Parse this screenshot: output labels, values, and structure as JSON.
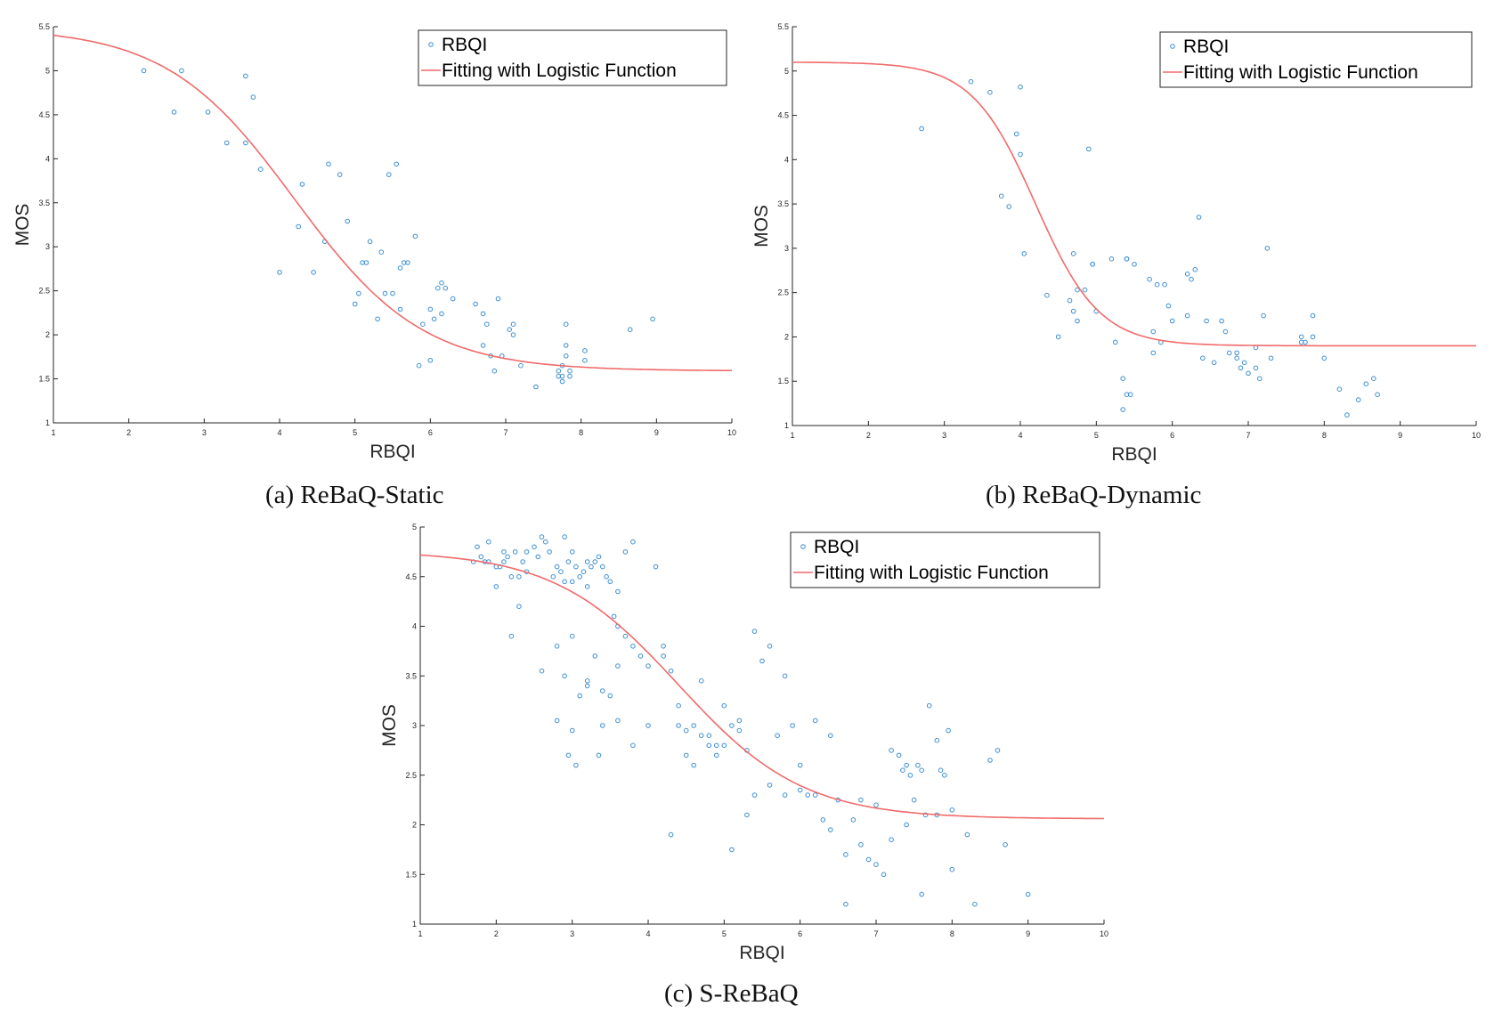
{
  "chart_data": [
    {
      "id": "static",
      "type": "scatter",
      "caption": "(a) ReBaQ-Static",
      "xlabel": "RBQI",
      "ylabel": "MOS",
      "xlim": [
        1,
        10
      ],
      "ylim": [
        1,
        5.5
      ],
      "xticks": [
        "1",
        "2",
        "3",
        "4",
        "5",
        "6",
        "7",
        "8",
        "9",
        "10"
      ],
      "yticks": [
        "1",
        "1.5",
        "2",
        "2.5",
        "3",
        "3.5",
        "4",
        "4.5",
        "5",
        "5.5"
      ],
      "legend": {
        "position": "top-right",
        "entries": [
          "RBQI",
          "Fitting with Logistic Function"
        ]
      },
      "colors": {
        "points": "#3d8fd1",
        "curve": "#f06a6a"
      },
      "fit": {
        "beta1": 1.59,
        "beta2": 3.9,
        "beta3": 4.2,
        "beta4": 0.85
      },
      "series": [
        {
          "name": "RBQI",
          "x": [
            2.2,
            2.6,
            2.7,
            3.05,
            3.3,
            3.55,
            3.55,
            3.65,
            3.75,
            4.0,
            4.25,
            4.3,
            4.45,
            4.6,
            4.65,
            4.8,
            4.9,
            5.0,
            5.05,
            5.1,
            5.15,
            5.2,
            5.3,
            5.35,
            5.4,
            5.45,
            5.5,
            5.55,
            5.6,
            5.6,
            5.65,
            5.7,
            5.8,
            5.85,
            5.9,
            6.0,
            6.0,
            6.05,
            6.1,
            6.15,
            6.15,
            6.2,
            6.3,
            6.6,
            6.7,
            6.7,
            6.75,
            6.8,
            6.85,
            6.9,
            6.95,
            7.05,
            7.1,
            7.1,
            7.2,
            7.4,
            7.7,
            7.7,
            7.75,
            7.75,
            7.75,
            7.8,
            7.8,
            7.8,
            7.85,
            7.85,
            8.05,
            8.05,
            8.65,
            8.95
          ],
          "y": [
            5.0,
            4.53,
            5.0,
            4.53,
            4.18,
            4.94,
            4.18,
            4.7,
            3.88,
            2.71,
            3.23,
            3.71,
            2.71,
            3.06,
            3.94,
            3.82,
            3.29,
            2.35,
            2.47,
            2.82,
            2.82,
            3.06,
            2.18,
            2.94,
            2.47,
            3.82,
            2.47,
            3.94,
            2.76,
            2.29,
            2.82,
            2.82,
            3.12,
            1.65,
            2.12,
            2.29,
            1.71,
            2.18,
            2.53,
            2.59,
            2.24,
            2.53,
            2.41,
            2.35,
            2.24,
            1.88,
            2.12,
            1.76,
            1.59,
            2.41,
            1.76,
            2.06,
            2.12,
            2.0,
            1.65,
            1.41,
            1.53,
            1.59,
            1.65,
            1.53,
            1.47,
            2.12,
            1.88,
            1.76,
            1.59,
            1.53,
            1.82,
            1.71,
            2.06,
            2.18
          ]
        }
      ]
    },
    {
      "id": "dynamic",
      "type": "scatter",
      "caption": "(b) ReBaQ-Dynamic",
      "xlabel": "RBQI",
      "ylabel": "MOS",
      "xlim": [
        1,
        10
      ],
      "ylim": [
        1,
        5.5
      ],
      "xticks": [
        "1",
        "2",
        "3",
        "4",
        "5",
        "6",
        "7",
        "8",
        "9",
        "10"
      ],
      "yticks": [
        "1",
        "1.5",
        "2",
        "2.5",
        "3",
        "3.5",
        "4",
        "4.5",
        "5",
        "5.5"
      ],
      "legend": {
        "position": "top-right",
        "entries": [
          "RBQI",
          "Fitting with Logistic Function"
        ]
      },
      "colors": {
        "points": "#3d8fd1",
        "curve": "#f06a6a"
      },
      "fit": {
        "beta1": 1.9,
        "beta2": 3.2,
        "beta3": 4.2,
        "beta4": 0.42
      },
      "series": [
        {
          "name": "RBQI",
          "x": [
            2.7,
            3.35,
            3.6,
            3.75,
            3.85,
            3.95,
            4.0,
            4.0,
            4.05,
            4.35,
            4.5,
            4.65,
            4.7,
            4.7,
            4.75,
            4.75,
            4.85,
            4.9,
            4.95,
            4.95,
            5.0,
            5.2,
            5.25,
            5.35,
            5.35,
            5.4,
            5.4,
            5.4,
            5.45,
            5.5,
            5.7,
            5.75,
            5.75,
            5.8,
            5.85,
            5.9,
            5.95,
            6.0,
            6.2,
            6.2,
            6.25,
            6.3,
            6.35,
            6.4,
            6.45,
            6.55,
            6.65,
            6.7,
            6.75,
            6.85,
            6.85,
            6.9,
            6.95,
            7.0,
            7.1,
            7.1,
            7.15,
            7.2,
            7.25,
            7.3,
            7.7,
            7.7,
            7.75,
            7.85,
            7.85,
            8.0,
            8.2,
            8.3,
            8.45,
            8.55,
            8.65,
            8.7
          ],
          "y": [
            4.35,
            4.88,
            4.76,
            3.59,
            3.47,
            4.29,
            4.06,
            4.82,
            2.94,
            2.47,
            2.0,
            2.41,
            2.29,
            2.94,
            2.18,
            2.53,
            2.53,
            4.12,
            2.82,
            2.82,
            2.29,
            2.88,
            1.94,
            1.53,
            1.18,
            2.88,
            2.88,
            1.35,
            1.35,
            2.82,
            2.65,
            1.82,
            2.06,
            2.59,
            1.94,
            2.59,
            2.35,
            2.18,
            2.71,
            2.24,
            2.65,
            2.76,
            3.35,
            1.76,
            2.18,
            1.71,
            2.18,
            2.06,
            1.82,
            1.82,
            1.76,
            1.65,
            1.71,
            1.59,
            1.65,
            1.88,
            1.53,
            2.24,
            3.0,
            1.76,
            1.94,
            2.0,
            1.94,
            2.24,
            2.0,
            1.76,
            1.41,
            1.12,
            1.29,
            1.47,
            1.53,
            1.35
          ]
        }
      ]
    },
    {
      "id": "srebaq",
      "type": "scatter",
      "caption": "(c) S-ReBaQ",
      "xlabel": "RBQI",
      "ylabel": "MOS",
      "xlim": [
        1,
        10
      ],
      "ylim": [
        1,
        5
      ],
      "xticks": [
        "1",
        "2",
        "3",
        "4",
        "5",
        "6",
        "7",
        "8",
        "9",
        "10"
      ],
      "yticks": [
        "1",
        "1.5",
        "2",
        "2.5",
        "3",
        "3.5",
        "4",
        "4.5",
        "5"
      ],
      "legend": {
        "position": "top-right",
        "entries": [
          "RBQI",
          "Fitting with Logistic Function"
        ]
      },
      "colors": {
        "points": "#3d8fd1",
        "curve": "#f06a6a"
      },
      "fit": {
        "beta1": 2.06,
        "beta2": 2.7,
        "beta3": 4.4,
        "beta4": 0.82
      },
      "series": [
        {
          "name": "RBQI",
          "x": [
            1.7,
            1.75,
            1.8,
            1.85,
            1.9,
            2.0,
            2.0,
            2.05,
            2.1,
            2.15,
            2.2,
            2.25,
            2.3,
            2.3,
            2.35,
            2.4,
            2.5,
            2.55,
            2.6,
            2.65,
            2.7,
            2.75,
            2.8,
            2.85,
            2.9,
            2.9,
            2.95,
            3.0,
            3.0,
            3.05,
            3.1,
            3.15,
            3.2,
            3.2,
            3.25,
            3.3,
            3.35,
            3.4,
            3.45,
            3.5,
            3.55,
            3.6,
            3.6,
            3.7,
            3.8,
            3.8,
            3.9,
            4.0,
            4.1,
            4.2,
            4.3,
            4.4,
            4.5,
            4.6,
            4.7,
            4.8,
            4.9,
            5.0,
            5.1,
            5.2,
            5.3,
            5.4,
            5.5,
            5.6,
            5.7,
            5.8,
            5.9,
            6.0,
            6.1,
            6.2,
            6.3,
            6.4,
            6.5,
            6.6,
            6.7,
            6.8,
            6.9,
            7.0,
            7.1,
            7.2,
            7.3,
            7.35,
            7.4,
            7.45,
            7.5,
            7.55,
            7.6,
            7.65,
            7.7,
            7.8,
            7.85,
            7.9,
            7.95,
            8.0,
            8.2,
            8.3,
            8.5,
            8.6,
            8.7,
            9.0,
            2.8,
            2.9,
            3.0,
            3.1,
            3.2,
            3.3,
            3.4,
            3.5,
            3.6,
            3.7,
            1.9,
            2.1,
            2.2,
            2.4,
            2.6,
            2.8,
            3.0,
            3.2,
            3.4,
            3.6,
            3.8,
            4.0,
            4.2,
            4.3,
            4.4,
            4.5,
            4.6,
            4.7,
            4.8,
            4.9,
            5.0,
            5.1,
            5.2,
            5.3,
            5.4,
            5.6,
            5.8,
            6.0,
            6.2,
            6.4,
            6.6,
            6.8,
            7.0,
            7.2,
            7.4,
            7.6,
            7.8,
            8.0,
            3.35,
            3.05,
            2.95
          ],
          "y": [
            4.65,
            4.8,
            4.7,
            4.65,
            4.85,
            4.6,
            4.4,
            4.6,
            4.65,
            4.7,
            4.5,
            4.75,
            4.2,
            4.5,
            4.65,
            4.75,
            4.8,
            4.7,
            4.9,
            4.85,
            4.75,
            4.5,
            4.6,
            4.55,
            4.45,
            4.9,
            4.65,
            4.75,
            4.45,
            4.6,
            4.5,
            4.55,
            4.65,
            4.4,
            4.6,
            4.65,
            4.7,
            4.6,
            4.5,
            4.45,
            4.1,
            4.0,
            4.35,
            4.75,
            4.85,
            3.8,
            3.7,
            3.6,
            4.6,
            3.7,
            3.55,
            3.2,
            2.95,
            3.0,
            3.45,
            2.9,
            2.8,
            3.2,
            3.0,
            3.05,
            2.75,
            3.95,
            3.65,
            3.8,
            2.9,
            3.5,
            3.0,
            2.6,
            2.3,
            3.05,
            2.05,
            1.95,
            2.25,
            1.7,
            2.05,
            1.8,
            1.65,
            2.2,
            1.5,
            2.75,
            2.7,
            2.55,
            2.6,
            2.5,
            2.25,
            2.6,
            2.55,
            2.1,
            3.2,
            2.85,
            2.55,
            2.5,
            2.95,
            2.15,
            1.9,
            1.2,
            2.65,
            2.75,
            1.8,
            1.3,
            3.8,
            3.5,
            3.9,
            3.3,
            3.4,
            3.7,
            3.35,
            3.3,
            3.6,
            3.9,
            4.65,
            4.75,
            3.9,
            4.55,
            3.55,
            3.05,
            2.95,
            3.45,
            3.0,
            3.05,
            2.8,
            3.0,
            3.8,
            1.9,
            3.0,
            2.7,
            2.6,
            2.9,
            2.8,
            2.7,
            2.8,
            1.75,
            2.95,
            2.1,
            2.3,
            2.4,
            2.3,
            2.35,
            2.3,
            2.9,
            1.2,
            2.25,
            1.6,
            1.85,
            2.0,
            1.3,
            2.1,
            1.55,
            2.7,
            2.6,
            2.7
          ]
        }
      ]
    }
  ]
}
